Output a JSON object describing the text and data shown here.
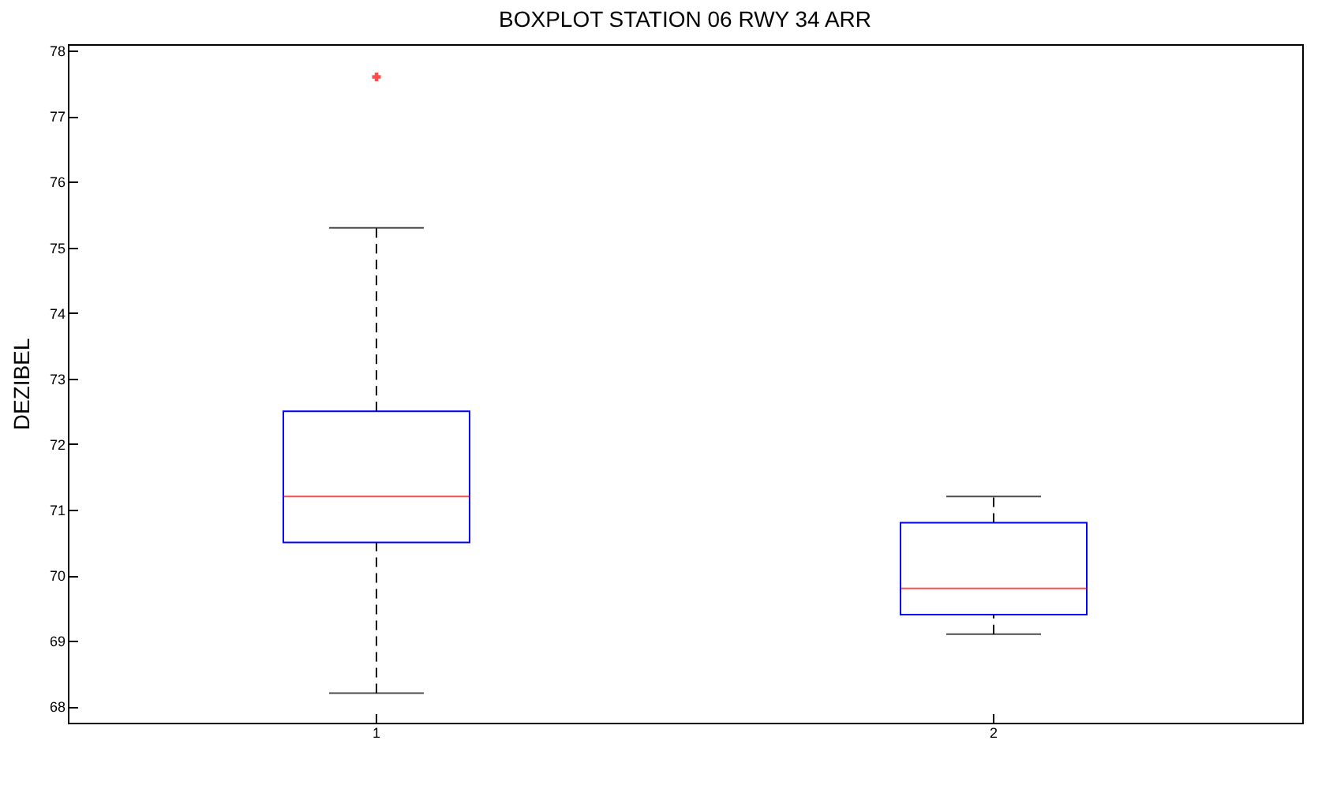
{
  "chart_data": {
    "type": "box",
    "title": "BOXPLOT STATION 06 RWY 34 ARR",
    "ylabel": "DEZIBEL",
    "categories": [
      "1",
      "2"
    ],
    "boxes": [
      {
        "low": 68.2,
        "q1": 70.5,
        "median": 71.2,
        "q3": 72.5,
        "high": 75.3,
        "outliers": [
          77.6
        ]
      },
      {
        "low": 69.1,
        "q1": 69.4,
        "median": 69.8,
        "q3": 70.8,
        "high": 71.2
      }
    ],
    "ylim": [
      67.75,
      78.1
    ],
    "yticks": [
      68,
      69,
      70,
      71,
      72,
      73,
      74,
      75,
      76,
      77,
      78
    ],
    "grid": false
  }
}
